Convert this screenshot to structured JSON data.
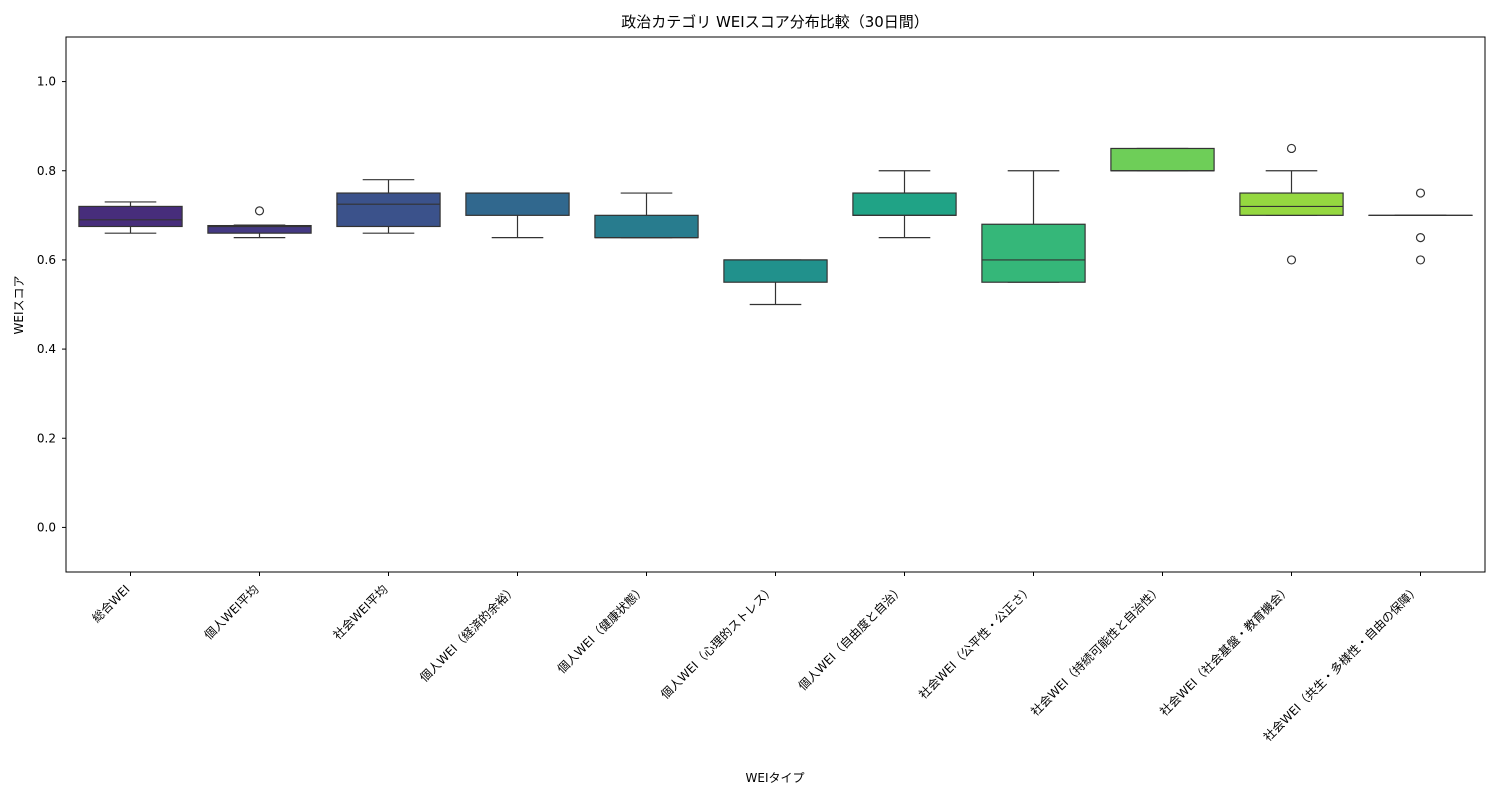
{
  "chart_data": {
    "type": "box",
    "title": "政治カテゴリ WEIスコア分布比較（30日間）",
    "xlabel": "WEIタイプ",
    "ylabel": "WEIスコア",
    "ylim": [
      -0.1,
      1.1
    ],
    "yticks": [
      "0.0",
      "0.2",
      "0.4",
      "0.6",
      "0.8",
      "1.0"
    ],
    "ytick_values": [
      0.0,
      0.2,
      0.4,
      0.6,
      0.8,
      1.0
    ],
    "grid": false,
    "palette": "viridis",
    "categories": [
      "総合WEI",
      "個人WEI平均",
      "社会WEI平均",
      "個人WEI（経済的余裕）",
      "個人WEI（健康状態）",
      "個人WEI（心理的ストレス）",
      "個人WEI（自由度と自治）",
      "社会WEI（公平性・公正さ）",
      "社会WEI（持続可能性と自治性）",
      "社会WEI（社会基盤・教育機会）",
      "社会WEI（共生・多様性・自由の保障）"
    ],
    "boxes": [
      {
        "whislo": 0.66,
        "q1": 0.675,
        "med": 0.69,
        "q3": 0.72,
        "whishi": 0.73,
        "fliers": [],
        "color": "#472d7b"
      },
      {
        "whislo": 0.65,
        "q1": 0.66,
        "med": 0.675,
        "q3": 0.677,
        "whishi": 0.678,
        "fliers": [
          0.71
        ],
        "color": "#443983"
      },
      {
        "whislo": 0.66,
        "q1": 0.675,
        "med": 0.725,
        "q3": 0.75,
        "whishi": 0.78,
        "fliers": [],
        "color": "#3b528b"
      },
      {
        "whislo": 0.65,
        "q1": 0.7,
        "med": 0.75,
        "q3": 0.75,
        "whishi": 0.75,
        "fliers": [],
        "color": "#31688e"
      },
      {
        "whislo": 0.65,
        "q1": 0.65,
        "med": 0.65,
        "q3": 0.7,
        "whishi": 0.75,
        "fliers": [],
        "color": "#287c8e"
      },
      {
        "whislo": 0.5,
        "q1": 0.55,
        "med": 0.6,
        "q3": 0.6,
        "whishi": 0.6,
        "fliers": [],
        "color": "#21918c"
      },
      {
        "whislo": 0.65,
        "q1": 0.7,
        "med": 0.7,
        "q3": 0.75,
        "whishi": 0.8,
        "fliers": [],
        "color": "#20a386"
      },
      {
        "whislo": 0.55,
        "q1": 0.55,
        "med": 0.6,
        "q3": 0.68,
        "whishi": 0.8,
        "fliers": [],
        "color": "#35b779"
      },
      {
        "whislo": 0.8,
        "q1": 0.8,
        "med": 0.8,
        "q3": 0.85,
        "whishi": 0.85,
        "fliers": [],
        "color": "#6ece58"
      },
      {
        "whislo": 0.7,
        "q1": 0.7,
        "med": 0.72,
        "q3": 0.75,
        "whishi": 0.8,
        "fliers": [
          0.85,
          0.6
        ],
        "color": "#95d840"
      },
      {
        "whislo": 0.7,
        "q1": 0.7,
        "med": 0.7,
        "q3": 0.7,
        "whishi": 0.7,
        "fliers": [
          0.75,
          0.65,
          0.6
        ],
        "color": "#bddf26"
      }
    ]
  }
}
